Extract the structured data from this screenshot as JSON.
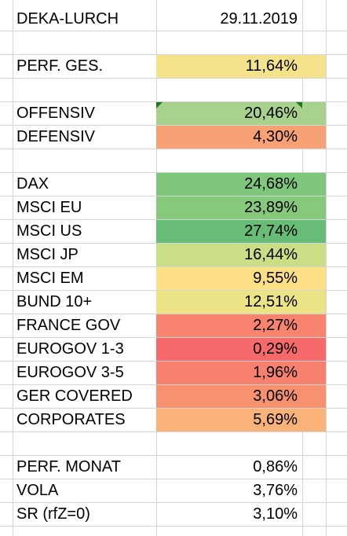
{
  "rows": [
    {
      "label": "DEKA-LURCH",
      "value": "29.11.2019",
      "color": "",
      "extend": false
    },
    {
      "label": "",
      "value": "",
      "color": "",
      "extend": false
    },
    {
      "label": "PERF. GES.",
      "value": "11,64%",
      "color": "#f5e38b",
      "extend": true
    },
    {
      "label": "",
      "value": "",
      "color": "",
      "extend": false
    },
    {
      "label": "OFFENSIV",
      "value": "20,46%",
      "color": "#a9d18e",
      "extend": true,
      "comment": true
    },
    {
      "label": "DEFENSIV",
      "value": "4,30%",
      "color": "#f8a174",
      "extend": true
    },
    {
      "label": "",
      "value": "",
      "color": "",
      "extend": false
    },
    {
      "label": "DAX",
      "value": "24,68%",
      "color": "#7fc77c",
      "extend": true
    },
    {
      "label": "MSCI EU",
      "value": "23,89%",
      "color": "#86c97d",
      "extend": true
    },
    {
      "label": "MSCI US",
      "value": "27,74%",
      "color": "#67bd78",
      "extend": true
    },
    {
      "label": "MSCI JP",
      "value": "16,44%",
      "color": "#cadf85",
      "extend": true
    },
    {
      "label": "MSCI EM",
      "value": "9,55%",
      "color": "#fde086",
      "extend": true
    },
    {
      "label": "BUND 10+",
      "value": "12,51%",
      "color": "#ece386",
      "extend": true
    },
    {
      "label": "FRANCE GOV",
      "value": "2,27%",
      "color": "#f8836e",
      "extend": true
    },
    {
      "label": "EUROGOV 1-3",
      "value": "0,29%",
      "color": "#f76a6c",
      "extend": true
    },
    {
      "label": "EUROGOV 3-5",
      "value": "1,96%",
      "color": "#f7806e",
      "extend": true
    },
    {
      "label": "GER COVERED",
      "value": "3,06%",
      "color": "#f89170",
      "extend": true
    },
    {
      "label": "CORPORATES",
      "value": "5,69%",
      "color": "#f9b378",
      "extend": true
    },
    {
      "label": "",
      "value": "",
      "color": "",
      "extend": false
    },
    {
      "label": "PERF. MONAT",
      "value": "0,86%",
      "color": "",
      "extend": false
    },
    {
      "label": "VOLA",
      "value": "3,76%",
      "color": "",
      "extend": false
    },
    {
      "label": "SR (rfZ=0)",
      "value": "3,10%",
      "color": "",
      "extend": false
    }
  ]
}
